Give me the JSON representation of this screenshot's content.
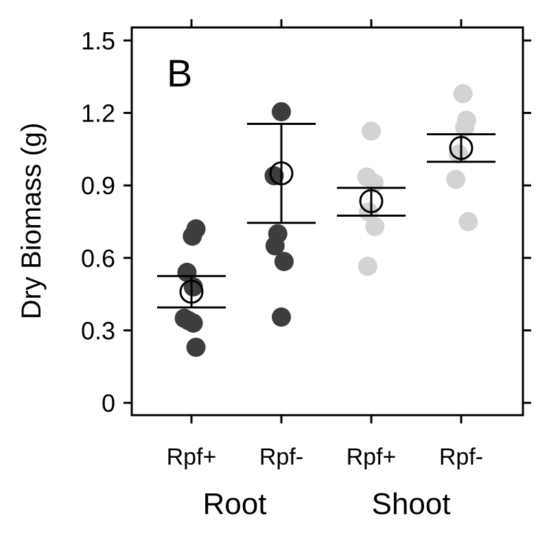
{
  "chart_data": {
    "type": "scatter",
    "panel_label": "B",
    "ylabel": "Dry Biomass (g)",
    "ylim": [
      0,
      1.5
    ],
    "yticks": [
      "0",
      "0.3",
      "0.6",
      "0.9",
      "1.2",
      "1.5"
    ],
    "categories": [
      "Rpf+",
      "Rpf-",
      "Rpf+",
      "Rpf-"
    ],
    "groups": [
      "Root",
      "Shoot"
    ],
    "colors": {
      "root": "#3d3d3d",
      "shoot": "#d3d3d3",
      "frame": "#000000"
    },
    "series": [
      {
        "category": "Rpf+",
        "group": "Root",
        "color": "#3d3d3d",
        "mean": 0.46,
        "ci": [
          0.395,
          0.525
        ],
        "points": [
          {
            "x": 0.95,
            "y": 0.54
          },
          {
            "x": 1.05,
            "y": 0.72
          },
          {
            "x": 1.01,
            "y": 0.69
          },
          {
            "x": 1.02,
            "y": 0.48
          },
          {
            "x": 0.92,
            "y": 0.35
          },
          {
            "x": 1.02,
            "y": 0.33
          },
          {
            "x": 1.05,
            "y": 0.23
          },
          {
            "x": 0.97,
            "y": 0.34
          }
        ]
      },
      {
        "category": "Rpf-",
        "group": "Root",
        "color": "#3d3d3d",
        "mean": 0.95,
        "ci": [
          0.745,
          1.155
        ],
        "points": [
          {
            "x": 2.0,
            "y": 1.205
          },
          {
            "x": 1.92,
            "y": 0.94
          },
          {
            "x": 1.96,
            "y": 0.7
          },
          {
            "x": 1.93,
            "y": 0.65
          },
          {
            "x": 2.03,
            "y": 0.585
          },
          {
            "x": 2.0,
            "y": 0.355
          }
        ]
      },
      {
        "category": "Rpf+",
        "group": "Shoot",
        "color": "#d3d3d3",
        "mean": 0.835,
        "ci": [
          0.775,
          0.89
        ],
        "points": [
          {
            "x": 3.0,
            "y": 1.125
          },
          {
            "x": 2.95,
            "y": 0.935
          },
          {
            "x": 3.03,
            "y": 0.91
          },
          {
            "x": 2.97,
            "y": 0.79
          },
          {
            "x": 3.04,
            "y": 0.73
          },
          {
            "x": 2.96,
            "y": 0.565
          }
        ]
      },
      {
        "category": "Rpf-",
        "group": "Shoot",
        "color": "#d3d3d3",
        "mean": 1.055,
        "ci": [
          0.998,
          1.112
        ],
        "points": [
          {
            "x": 4.02,
            "y": 1.28
          },
          {
            "x": 4.06,
            "y": 1.17
          },
          {
            "x": 4.04,
            "y": 1.14
          },
          {
            "x": 3.97,
            "y": 1.03
          },
          {
            "x": 3.94,
            "y": 0.925
          },
          {
            "x": 4.08,
            "y": 0.75
          }
        ]
      }
    ]
  }
}
